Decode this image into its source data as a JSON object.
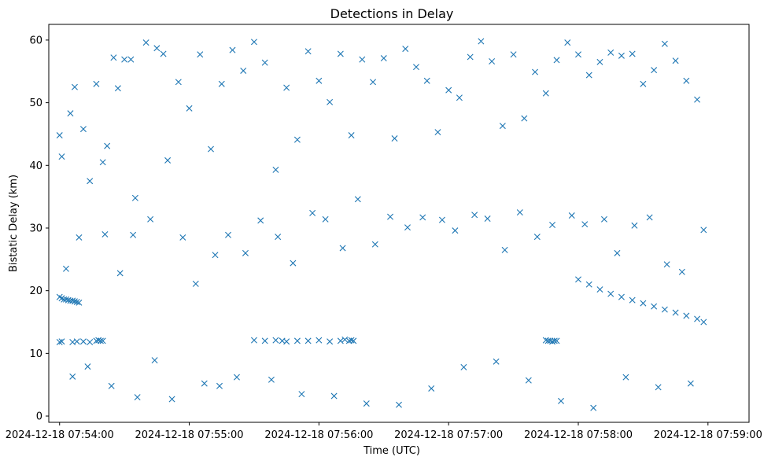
{
  "chart_data": {
    "type": "scatter",
    "title": "Detections in Delay",
    "xlabel": "Time (UTC)",
    "ylabel": "Bistatic Delay (km)",
    "x_ticks": [
      "2024-12-18 07:54:00",
      "2024-12-18 07:55:00",
      "2024-12-18 07:56:00",
      "2024-12-18 07:57:00",
      "2024-12-18 07:58:00",
      "2024-12-18 07:59:00"
    ],
    "y_ticks": [
      "0",
      "10",
      "20",
      "30",
      "40",
      "50",
      "60"
    ],
    "xlim": [
      "2024-12-18 07:53:55",
      "2024-12-18 07:59:19"
    ],
    "ylim": [
      -1.0,
      62.5
    ],
    "grid": false,
    "marker": "x",
    "color": "#1f77b4",
    "series": [
      {
        "x": [
          "07:54:00",
          "07:54:01",
          "07:54:02",
          "07:54:03",
          "07:54:04",
          "07:54:05",
          "07:54:06",
          "07:54:07",
          "07:54:08",
          "07:54:09",
          "07:54:00",
          "07:54:01",
          "07:54:06",
          "07:54:08",
          "07:54:11",
          "07:54:14",
          "07:54:17",
          "07:54:18",
          "07:54:19",
          "07:54:20",
          "07:55:30",
          "07:55:35",
          "07:55:40",
          "07:55:43",
          "07:55:45",
          "07:55:50",
          "07:55:55",
          "07:56:00",
          "07:56:05",
          "07:56:10",
          "07:56:12",
          "07:56:14",
          "07:56:15",
          "07:56:16",
          "07:57:45",
          "07:57:46",
          "07:57:47",
          "07:57:48",
          "07:57:49",
          "07:57:50",
          "07:58:00",
          "07:58:05",
          "07:58:10",
          "07:58:15",
          "07:58:20",
          "07:58:25",
          "07:58:30",
          "07:58:35",
          "07:58:40",
          "07:58:45",
          "07:58:50",
          "07:58:55",
          "07:58:58",
          "07:54:00",
          "07:54:01",
          "07:54:05",
          "07:54:07",
          "07:54:11",
          "07:54:17",
          "07:54:20",
          "07:54:22",
          "07:54:25",
          "07:54:27",
          "07:54:30",
          "07:54:33",
          "07:54:35",
          "07:54:40",
          "07:54:45",
          "07:54:48",
          "07:54:55",
          "07:55:00",
          "07:55:05",
          "07:55:10",
          "07:55:15",
          "07:55:20",
          "07:55:25",
          "07:55:30",
          "07:55:35",
          "07:55:40",
          "07:55:45",
          "07:55:50",
          "07:55:55",
          "07:56:00",
          "07:56:05",
          "07:56:10",
          "07:56:15",
          "07:56:20",
          "07:56:25",
          "07:56:30",
          "07:56:35",
          "07:56:40",
          "07:56:45",
          "07:56:50",
          "07:56:55",
          "07:57:00",
          "07:57:05",
          "07:57:10",
          "07:57:15",
          "07:57:20",
          "07:57:25",
          "07:57:30",
          "07:57:35",
          "07:57:40",
          "07:57:45",
          "07:57:50",
          "07:57:55",
          "07:58:00",
          "07:58:05",
          "07:58:10",
          "07:58:15",
          "07:58:20",
          "07:58:25",
          "07:58:30",
          "07:58:35",
          "07:58:40",
          "07:58:45",
          "07:58:50",
          "07:58:55",
          "07:58:58",
          "07:54:03",
          "07:54:09",
          "07:54:14",
          "07:54:21",
          "07:54:28",
          "07:54:34",
          "07:54:42",
          "07:54:50",
          "07:54:57",
          "07:55:03",
          "07:55:12",
          "07:55:18",
          "07:55:26",
          "07:55:33",
          "07:55:41",
          "07:55:48",
          "07:55:57",
          "07:56:03",
          "07:56:11",
          "07:56:18",
          "07:56:26",
          "07:56:33",
          "07:56:41",
          "07:56:48",
          "07:56:57",
          "07:57:03",
          "07:57:12",
          "07:57:18",
          "07:57:26",
          "07:57:33",
          "07:57:41",
          "07:57:48",
          "07:57:57",
          "07:58:03",
          "07:58:12",
          "07:58:18",
          "07:58:26",
          "07:58:33",
          "07:58:41",
          "07:58:48",
          "07:54:06",
          "07:54:13",
          "07:54:24",
          "07:54:36",
          "07:54:44",
          "07:54:52",
          "07:55:07",
          "07:55:14",
          "07:55:22",
          "07:55:38",
          "07:55:52",
          "07:56:07",
          "07:56:22",
          "07:56:37",
          "07:56:52",
          "07:57:07",
          "07:57:22",
          "07:57:37",
          "07:57:52",
          "07:58:07",
          "07:58:22",
          "07:58:37",
          "07:58:52"
        ],
        "y": [
          19.0,
          18.8,
          18.6,
          18.6,
          18.5,
          18.4,
          18.4,
          18.3,
          18.2,
          18.1,
          11.8,
          11.9,
          11.8,
          11.9,
          11.9,
          11.8,
          12.0,
          12.1,
          12.0,
          12.0,
          12.1,
          12.0,
          12.1,
          12.0,
          11.9,
          12.0,
          12.0,
          12.1,
          11.9,
          12.0,
          12.2,
          12.0,
          12.1,
          12.0,
          12.1,
          12.0,
          12.0,
          11.9,
          12.0,
          12.0,
          21.8,
          21.0,
          20.2,
          19.5,
          19.0,
          18.5,
          18.0,
          17.5,
          17.0,
          16.5,
          16.0,
          15.5,
          15.0,
          44.8,
          41.4,
          48.3,
          52.5,
          45.8,
          53.0,
          40.5,
          43.1,
          57.2,
          52.3,
          56.9,
          56.9,
          34.8,
          59.6,
          58.7,
          57.8,
          53.3,
          49.1,
          57.7,
          42.6,
          53.0,
          58.4,
          55.1,
          59.7,
          56.4,
          39.3,
          52.4,
          44.1,
          58.2,
          53.5,
          50.1,
          57.8,
          44.8,
          56.9,
          53.3,
          57.1,
          44.3,
          58.6,
          55.7,
          53.5,
          45.3,
          52.0,
          50.8,
          57.3,
          59.8,
          56.6,
          46.3,
          57.7,
          47.5,
          54.9,
          51.5,
          56.8,
          59.6,
          57.7,
          54.4,
          56.5,
          58.0,
          57.5,
          57.8,
          53.0,
          55.2,
          59.4,
          56.7,
          53.5,
          50.5,
          29.7,
          23.5,
          28.5,
          37.5,
          29.0,
          22.8,
          28.9,
          31.4,
          40.8,
          28.5,
          21.1,
          25.7,
          28.9,
          26.0,
          31.2,
          28.6,
          24.4,
          32.4,
          31.4,
          26.8,
          34.6,
          27.4,
          31.8,
          30.1,
          31.7,
          31.3,
          29.6,
          32.1,
          31.5,
          26.5,
          32.5,
          28.6,
          30.5,
          32.0,
          30.6,
          31.4,
          26.0,
          30.4,
          31.7,
          24.2,
          23.0,
          6.3,
          7.9,
          4.8,
          3.0,
          8.9,
          2.7,
          5.2,
          4.8,
          6.2,
          5.8,
          3.5,
          3.2,
          2.0,
          1.8,
          4.4,
          7.8,
          8.7,
          5.7,
          2.4,
          1.3,
          6.2,
          4.6,
          5.2
        ]
      }
    ]
  }
}
